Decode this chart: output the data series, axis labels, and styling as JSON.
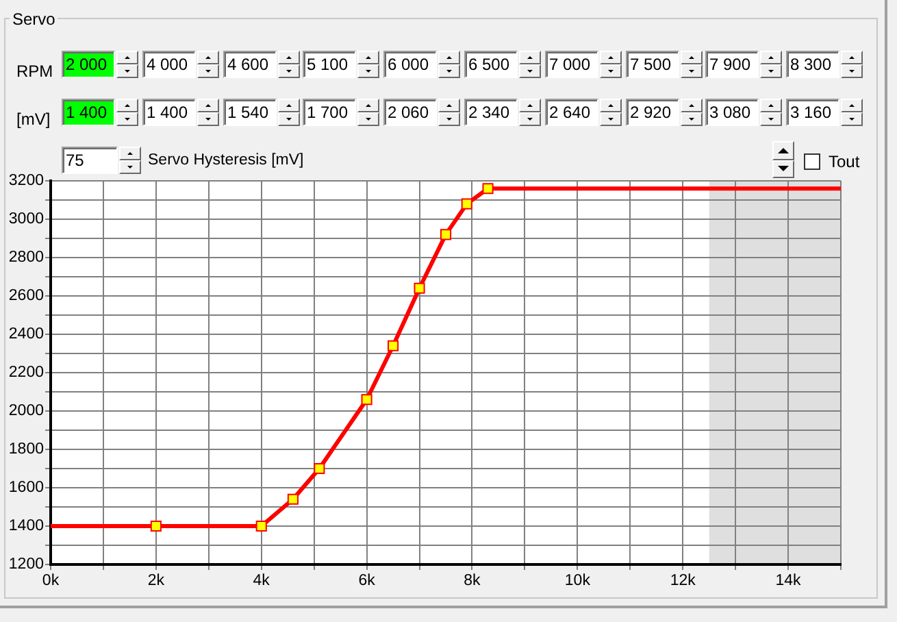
{
  "chart_data": {
    "type": "line",
    "title": "Servo",
    "series": [
      {
        "type": "line",
        "color": "#ff0000",
        "x": [
          0,
          2000,
          4000,
          4600,
          5100,
          6000,
          6500,
          7000,
          7500,
          7900,
          8300,
          15000
        ],
        "values": [
          1400,
          1400,
          1400,
          1540,
          1700,
          2060,
          2340,
          2640,
          2920,
          3080,
          3160,
          3160
        ],
        "marker": "none"
      },
      {
        "type": "scatter",
        "color": "#ffff00",
        "x": [
          2000,
          4000,
          4600,
          5100,
          6000,
          6500,
          7000,
          7500,
          7900,
          8300
        ],
        "values": [
          1400,
          1400,
          1540,
          1700,
          2060,
          2340,
          2640,
          2920,
          3080,
          3160
        ],
        "marker": "square"
      }
    ],
    "xlim": [
      0,
      15000
    ],
    "xticks": [
      {
        "value": 0,
        "label": "0k"
      },
      {
        "value": 1000,
        "label": null
      },
      {
        "value": 2000,
        "label": "2k"
      },
      {
        "value": 3000,
        "label": null
      },
      {
        "value": 4000,
        "label": "4k"
      },
      {
        "value": 5000,
        "label": null
      },
      {
        "value": 6000,
        "label": "6k"
      },
      {
        "value": 7000,
        "label": null
      },
      {
        "value": 8000,
        "label": "8k"
      },
      {
        "value": 9000,
        "label": null
      },
      {
        "value": 10000,
        "label": "10k"
      },
      {
        "value": 11000,
        "label": null
      },
      {
        "value": 12000,
        "label": "12k"
      },
      {
        "value": 13000,
        "label": null
      },
      {
        "value": 14000,
        "label": "14k"
      },
      {
        "value": 15000,
        "label": null
      }
    ],
    "ylim": [
      1200,
      3200
    ],
    "yticks": [
      1200,
      {
        "value": 1300,
        "label": null
      },
      1400,
      {
        "value": 1500,
        "label": null
      },
      1600,
      {
        "value": 1700,
        "label": null
      },
      1800,
      {
        "value": 1900,
        "label": null
      },
      2000,
      {
        "value": 2100,
        "label": null
      },
      2200,
      {
        "value": 2300,
        "label": null
      },
      2400,
      {
        "value": 2500,
        "label": null
      },
      2600,
      {
        "value": 2700,
        "label": null
      },
      2800,
      {
        "value": 2900,
        "label": null
      },
      3000,
      {
        "value": 3100,
        "label": null
      },
      3200
    ],
    "grid": true,
    "bands": [
      {
        "axis": "x",
        "from": 12500,
        "to": 15000,
        "color": "#dfdfdf"
      }
    ],
    "annotations": [
      "RPM",
      "2 000",
      "4 000",
      "4 600",
      "5 100",
      "6 000",
      "6 500",
      "7 000",
      "7 500",
      "7 900",
      "8 300",
      "[mV]",
      "1 400",
      "1 400",
      "1 540",
      "1 700",
      "2 060",
      "2 340",
      "2 640",
      "2 920",
      "3 080",
      "3 160",
      "75",
      "Servo Hysteresis [mV]",
      "Tout"
    ]
  }
}
